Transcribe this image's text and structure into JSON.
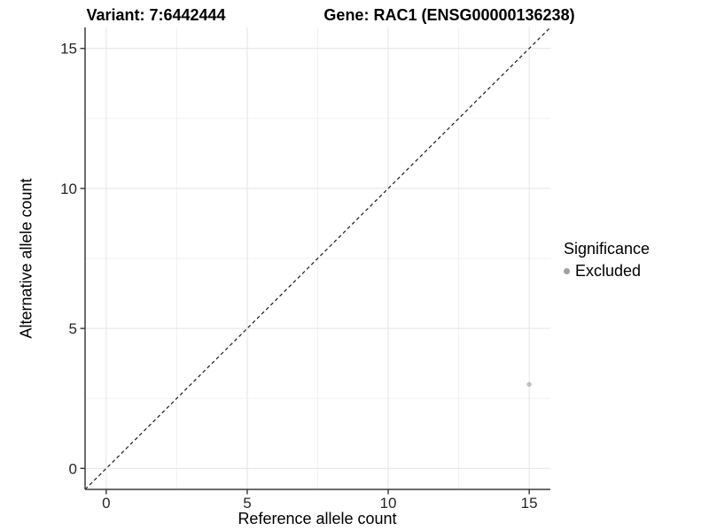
{
  "chart_data": {
    "type": "scatter",
    "title_left": "Variant: 7:6442444",
    "title_right": "Gene: RAC1 (ENSG00000136238)",
    "xlabel": "Reference allele count",
    "ylabel": "Alternative allele count",
    "xlim": [
      -0.75,
      15.75
    ],
    "ylim": [
      -0.75,
      15.75
    ],
    "xticks": [
      0,
      5,
      10,
      15
    ],
    "yticks": [
      0,
      5,
      10,
      15
    ],
    "x_minor_ticks": [
      2.5,
      7.5,
      12.5
    ],
    "y_minor_ticks": [
      2.5,
      7.5,
      12.5
    ],
    "grid": "major+minor",
    "reference_line": {
      "kind": "identity",
      "equation": "y = x",
      "style": "dashed",
      "color": "#1a1a1a"
    },
    "series": [
      {
        "name": "Excluded",
        "color": "#bfbfbf",
        "points": [
          {
            "x": 15,
            "y": 3
          }
        ]
      }
    ],
    "legend": {
      "title": "Significance",
      "position": "right",
      "items": [
        {
          "label": "Excluded",
          "color": "#a0a0a0",
          "marker": "circle"
        }
      ]
    },
    "colors": {
      "background": "#ffffff",
      "grid_major": "#e4e4e4",
      "grid_minor": "#f0f0f0",
      "axis_line": "#3d3d3d",
      "tick_mark": "#333333",
      "tick_label": "#262626"
    }
  }
}
